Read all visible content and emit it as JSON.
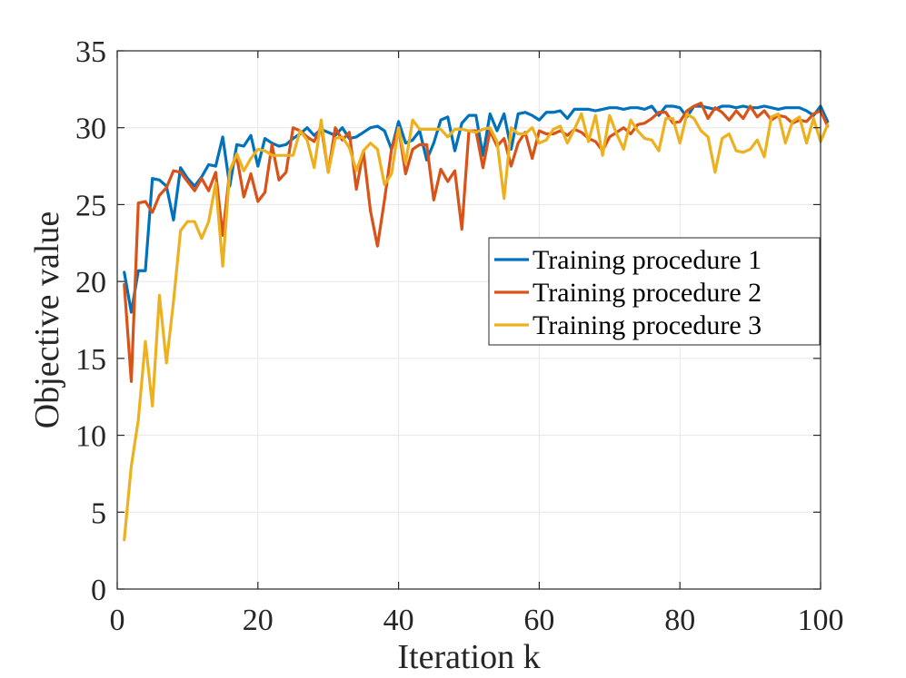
{
  "chart_data": {
    "type": "line",
    "title": "",
    "xlabel": "Iteration k",
    "ylabel": "Objective value",
    "xlim": [
      0,
      100
    ],
    "ylim": [
      0,
      35
    ],
    "xticks": [
      0,
      20,
      40,
      60,
      80,
      100
    ],
    "yticks": [
      0,
      5,
      10,
      15,
      20,
      25,
      30,
      35
    ],
    "grid": true,
    "legend_position": "center-right",
    "series": [
      {
        "name": "Training procedure 1",
        "color": "#0072BD",
        "values": [
          20.6,
          18.0,
          20.7,
          20.7,
          26.7,
          26.6,
          26.2,
          24.0,
          27.4,
          26.7,
          26.2,
          26.8,
          27.6,
          27.5,
          29.4,
          26.2,
          28.9,
          28.8,
          29.5,
          27.5,
          29.3,
          29.0,
          28.8,
          28.9,
          29.3,
          29.6,
          30.0,
          29.5,
          29.9,
          29.7,
          29.5,
          30.0,
          29.3,
          29.4,
          29.7,
          30.0,
          30.1,
          29.8,
          28.6,
          30.4,
          29.0,
          29.2,
          29.8,
          27.9,
          29.0,
          30.5,
          30.7,
          28.5,
          30.3,
          30.8,
          30.8,
          28.2,
          30.9,
          29.8,
          30.9,
          28.6,
          30.9,
          31.0,
          30.8,
          30.5,
          31.0,
          31.0,
          31.1,
          30.6,
          31.2,
          31.2,
          31.2,
          31.1,
          31.2,
          31.3,
          31.3,
          31.2,
          31.3,
          31.3,
          31.2,
          31.4,
          30.8,
          31.4,
          31.4,
          31.3,
          30.7,
          31.4,
          31.4,
          31.3,
          31.2,
          31.4,
          31.4,
          31.3,
          31.4,
          31.3,
          31.3,
          31.4,
          31.3,
          31.2,
          31.3,
          31.3,
          31.3,
          31.1,
          30.8,
          31.4,
          30.4
        ]
      },
      {
        "name": "Training procedure 2",
        "color": "#D95319",
        "values": [
          19.8,
          13.5,
          25.1,
          25.2,
          24.5,
          25.6,
          26.1,
          27.2,
          27.1,
          26.5,
          25.9,
          26.7,
          25.9,
          27.1,
          23.0,
          27.2,
          28.1,
          25.5,
          27.0,
          25.2,
          25.8,
          28.9,
          26.6,
          27.1,
          30.0,
          29.8,
          29.4,
          29.1,
          30.1,
          27.1,
          30.0,
          29.2,
          29.7,
          26.0,
          28.5,
          24.6,
          22.3,
          25.3,
          28.6,
          30.0,
          27.0,
          28.6,
          28.9,
          28.9,
          25.3,
          27.3,
          26.5,
          27.2,
          23.4,
          29.8,
          29.8,
          27.4,
          29.8,
          28.8,
          29.3,
          27.5,
          29.0,
          29.7,
          28.0,
          29.8,
          29.6,
          29.6,
          29.8,
          29.5,
          29.9,
          29.7,
          29.3,
          29.1,
          28.5,
          29.4,
          29.7,
          30.0,
          29.6,
          30.2,
          30.3,
          30.6,
          31.0,
          31.0,
          30.3,
          30.4,
          31.1,
          31.4,
          31.6,
          30.6,
          31.3,
          31.0,
          30.5,
          31.1,
          30.6,
          31.4,
          30.7,
          31.1,
          30.5,
          30.8,
          30.7,
          30.3,
          30.5,
          30.4,
          30.9,
          31.1,
          30.1
        ]
      },
      {
        "name": "Training procedure 3",
        "color": "#EDB120",
        "values": [
          3.2,
          8.0,
          11.0,
          16.1,
          11.9,
          19.1,
          14.7,
          18.7,
          23.3,
          23.9,
          23.9,
          22.8,
          23.9,
          26.4,
          21.0,
          27.2,
          28.3,
          27.2,
          28.0,
          28.6,
          28.5,
          28.2,
          28.2,
          28.2,
          28.2,
          29.8,
          29.2,
          27.4,
          30.5,
          27.1,
          29.3,
          29.4,
          28.7,
          27.2,
          28.5,
          29.0,
          28.6,
          26.3,
          27.0,
          30.0,
          27.7,
          30.5,
          29.9,
          29.9,
          29.9,
          29.9,
          29.4,
          29.9,
          29.9,
          29.8,
          29.7,
          29.9,
          30.0,
          29.1,
          25.4,
          30.0,
          29.6,
          29.6,
          30.0,
          29.0,
          29.2,
          29.9,
          30.1,
          29.0,
          29.9,
          30.9,
          29.1,
          30.8,
          28.2,
          30.8,
          29.6,
          28.6,
          30.5,
          29.8,
          29.3,
          29.2,
          28.5,
          30.6,
          30.6,
          29.0,
          30.9,
          30.6,
          29.8,
          29.4,
          27.1,
          29.3,
          29.6,
          28.5,
          28.4,
          28.6,
          29.2,
          28.1,
          30.7,
          30.9,
          29.0,
          30.4,
          30.7,
          29.0,
          30.6,
          29.1,
          30.2
        ]
      }
    ]
  }
}
